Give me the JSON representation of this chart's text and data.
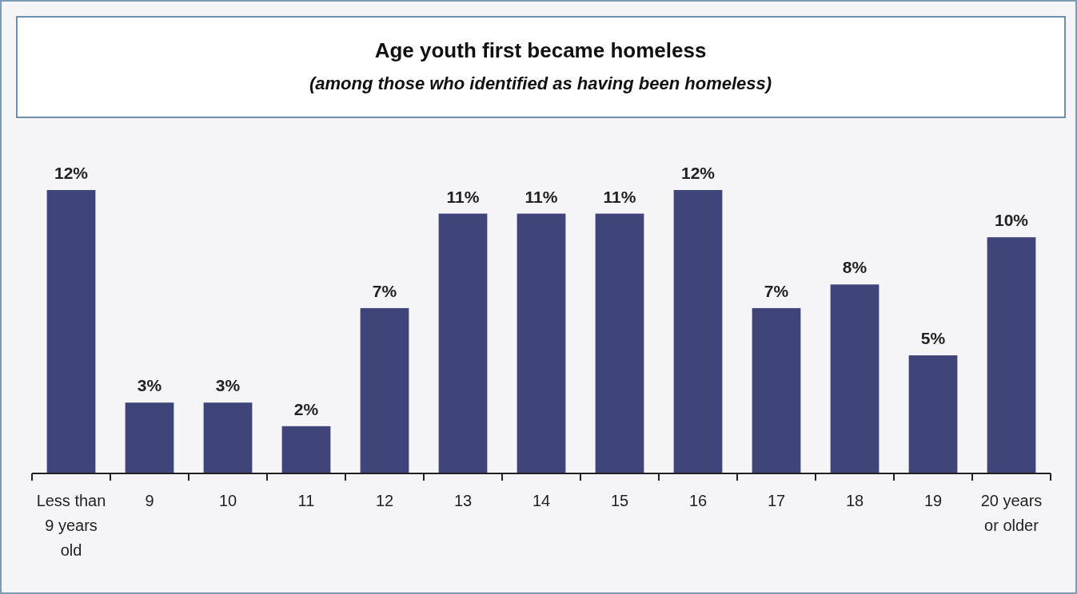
{
  "chart_data": {
    "type": "bar",
    "title": "Age youth first became homeless",
    "subtitle": "(among those who identified as having been homeless)",
    "categories": [
      "Less than 9 years old",
      "9",
      "10",
      "11",
      "12",
      "13",
      "14",
      "15",
      "16",
      "17",
      "18",
      "19",
      "20 years or older"
    ],
    "values": [
      12,
      3,
      3,
      2,
      7,
      11,
      11,
      11,
      12,
      7,
      8,
      5,
      10
    ],
    "value_labels": [
      "12%",
      "3%",
      "3%",
      "2%",
      "7%",
      "11%",
      "11%",
      "11%",
      "12%",
      "7%",
      "8%",
      "5%",
      "10%"
    ],
    "color": "#3f4479"
  }
}
